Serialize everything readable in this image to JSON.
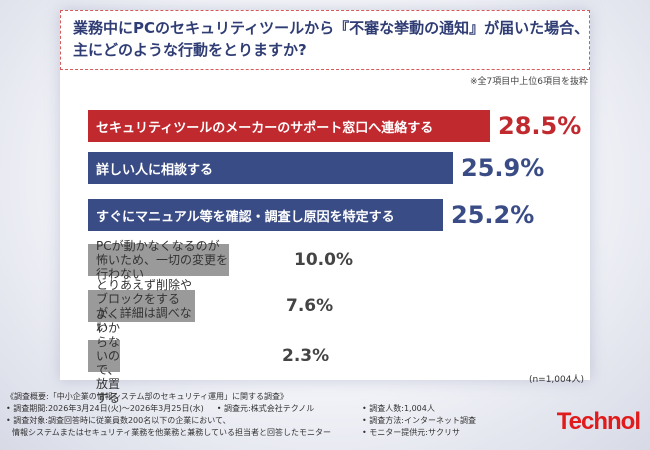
{
  "question": {
    "line1": "業務中にPCのセキュリティツールから『不審な挙動の通知』が届いた場合、",
    "line2": "主にどのような行動をとりますか?"
  },
  "note": "※全7項目中上位6項目を抜粋",
  "sample_size": "(n=1,004人)",
  "colors": {
    "highlight": "#c0292e",
    "primary": "#3a4c85",
    "secondary": "#9a9a9a",
    "brand": "#e11b1b"
  },
  "chart_data": {
    "type": "bar",
    "orientation": "horizontal",
    "unit": "%",
    "categories": [
      "セキュリティツールのメーカーのサポート窓口へ連絡する",
      "詳しい人に相談する",
      "すぐにマニュアル等を確認・調査し原因を特定する",
      "PCが動かなくなるのが怖いため、一切の変更を行わない",
      "とりあえず削除やブロックをするが、詳細は調べない",
      "よくわからないので、放置する"
    ],
    "values": [
      28.5,
      25.9,
      25.2,
      10.0,
      7.6,
      2.3
    ],
    "value_labels": [
      "28.5%",
      "25.9%",
      "25.2%",
      "10.0%",
      "7.6%",
      "2.3%"
    ],
    "xlim": [
      0,
      28.5
    ]
  },
  "footer": {
    "survey": "《調査概要:「中小企業の情報システム部のセキュリティ運用」に関する調査》",
    "period": "• 調査期間:2026年3月24日(火)〜2026年3月25日(水)",
    "organizer": "• 調査元:株式会社テクノル",
    "respondents": "• 調査人数:1,004人",
    "target_a": "• 調査対象:調査回答時に従業員数200名以下の企業において、",
    "target_b": "情報システムまたはセキュリティ業務を他業務と兼務している担当者と回答したモニター",
    "method": "• 調査方法:インターネット調査",
    "provider": "• モニター提供元:サクリサ"
  },
  "logo": "Technol"
}
